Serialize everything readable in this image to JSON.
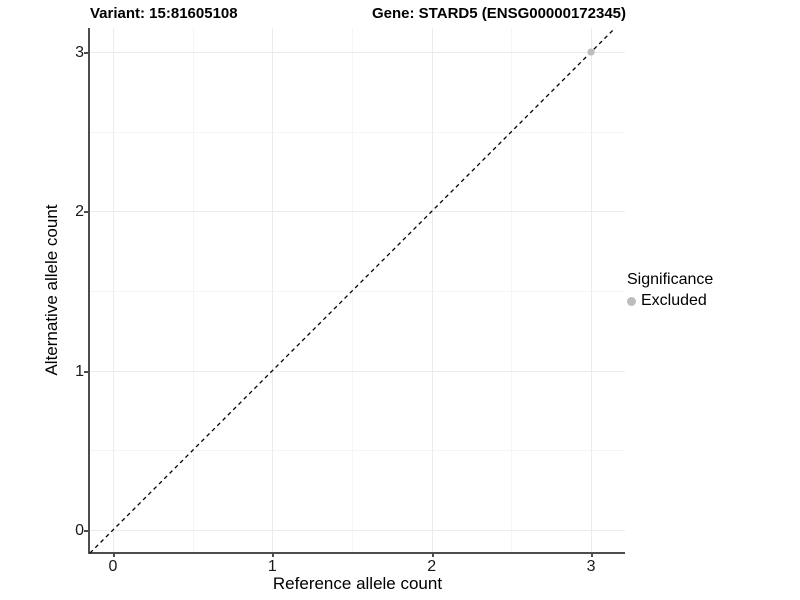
{
  "chart_data": {
    "type": "scatter",
    "title_left": "Variant: 15:81605108",
    "title_right": "Gene: STARD5 (ENSG00000172345)",
    "xlabel": "Reference allele count",
    "ylabel": "Alternative allele count",
    "x_ticks": [
      "0",
      "1",
      "2",
      "3"
    ],
    "y_ticks": [
      "0",
      "1",
      "2",
      "3"
    ],
    "x_tick_values": [
      0,
      1,
      2,
      3
    ],
    "y_tick_values": [
      0,
      1,
      2,
      3
    ],
    "x_minor_tick_values": [
      0.5,
      1.5,
      2.5
    ],
    "y_minor_tick_values": [
      0.5,
      1.5,
      2.5
    ],
    "x_range": [
      -0.144,
      3.213
    ],
    "y_range": [
      -0.144,
      3.151
    ],
    "grid": "major+minor",
    "legend_position": "right",
    "points": [
      {
        "x": 3,
        "y": 3,
        "series": "Excluded"
      }
    ],
    "reference_line": {
      "type": "identity",
      "slope": 1,
      "intercept": 0,
      "style": "dashed",
      "color": "#000000"
    },
    "legend": {
      "title": "Significance",
      "items": [
        {
          "label": "Excluded",
          "color": "#bdbdbd"
        }
      ]
    },
    "colors": {
      "point_excluded": "#bdbdbd",
      "grid_major": "#ebebeb",
      "grid_minor": "#f5f5f5",
      "axis_line": "#4d4d4d",
      "background": "#ffffff"
    }
  }
}
